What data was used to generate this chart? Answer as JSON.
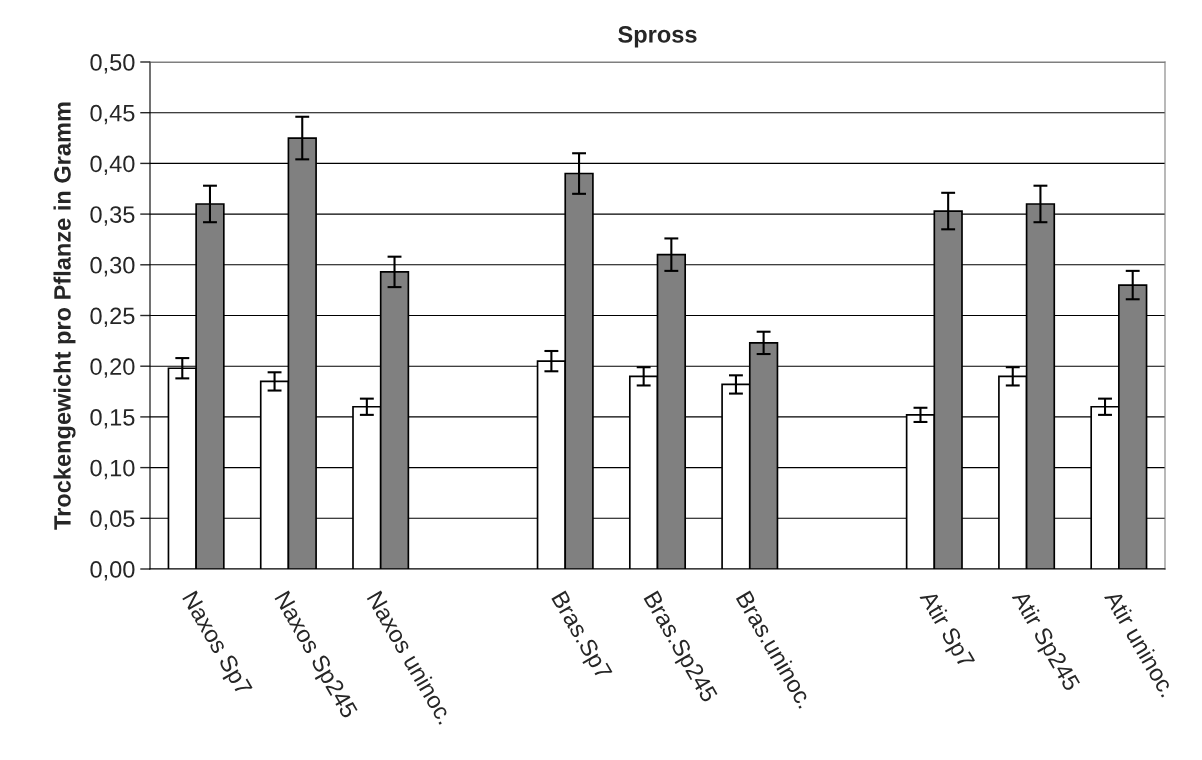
{
  "chart_data": {
    "type": "bar",
    "title": "Spross",
    "ylabel": "Trockengewicht pro Pflanze in Gramm",
    "categories": [
      "Naxos Sp7",
      "Naxos Sp245",
      "Naxos uninoc.",
      null,
      "Bras.Sp7",
      "Bras.Sp245",
      "Bras.uninoc.",
      null,
      "Atir Sp7",
      "Atir Sp245",
      "Atir uninoc."
    ],
    "series": [
      {
        "color": "#ffffff",
        "values": [
          0.198,
          0.185,
          0.16,
          null,
          0.205,
          0.19,
          0.182,
          null,
          0.152,
          0.19,
          0.16
        ],
        "errors": [
          0.01,
          0.009,
          0.008,
          null,
          0.01,
          0.009,
          0.009,
          null,
          0.007,
          0.009,
          0.008
        ]
      },
      {
        "color": "#808080",
        "values": [
          0.36,
          0.425,
          0.293,
          null,
          0.39,
          0.31,
          0.223,
          null,
          0.353,
          0.36,
          0.28
        ],
        "errors": [
          0.018,
          0.021,
          0.015,
          null,
          0.02,
          0.016,
          0.011,
          null,
          0.018,
          0.018,
          0.014
        ]
      }
    ],
    "ylim": [
      0,
      0.5
    ],
    "yticks": [
      {
        "value": 0,
        "label": "0,00"
      },
      {
        "value": 0.05,
        "label": "0,05"
      },
      {
        "value": 0.1,
        "label": "0,10"
      },
      {
        "value": 0.15,
        "label": "0,15"
      },
      {
        "value": 0.2,
        "label": "0,20"
      },
      {
        "value": 0.25,
        "label": "0,25"
      },
      {
        "value": 0.3,
        "label": "0,30"
      },
      {
        "value": 0.35,
        "label": "0,35"
      },
      {
        "value": 0.4,
        "label": "0,40"
      },
      {
        "value": 0.45,
        "label": "0,45"
      },
      {
        "value": 0.5,
        "label": "0,50"
      }
    ],
    "grid": "y",
    "legend": false
  }
}
